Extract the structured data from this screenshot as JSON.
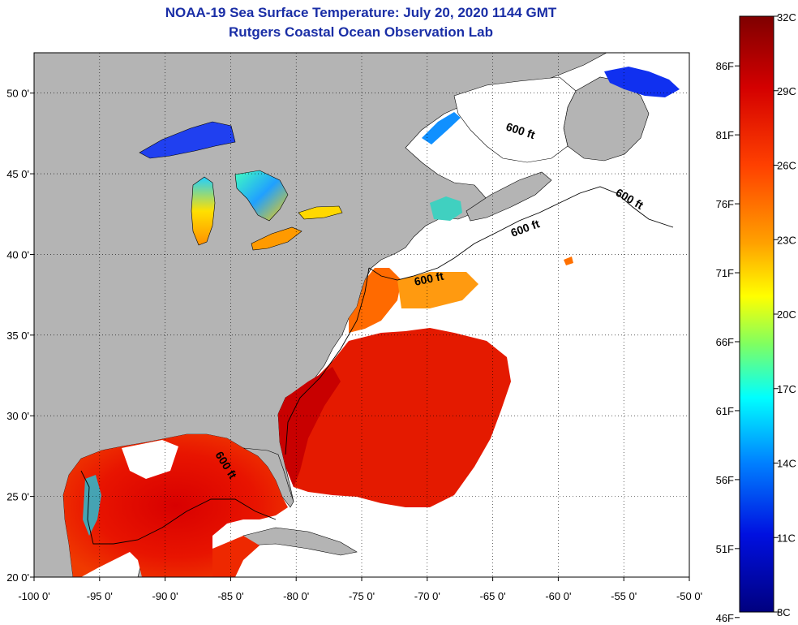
{
  "title": "NOAA-19 Sea Surface Temperature:  July 20, 2020 1144 GMT",
  "subtitle": "Rutgers Coastal Ocean Observation Lab",
  "map": {
    "lon_range": [
      -100,
      -50
    ],
    "lat_range": [
      20,
      52.5
    ],
    "lon_ticks": [
      "-100 0'",
      "-95 0'",
      "-90 0'",
      "-85 0'",
      "-80 0'",
      "-75 0'",
      "-70 0'",
      "-65 0'",
      "-60 0'",
      "-55 0'",
      "-50 0'"
    ],
    "lat_ticks": [
      "50 0'",
      "45 0'",
      "40 0'",
      "35 0'",
      "30 0'",
      "25 0'",
      "20 0'"
    ],
    "lon_values": [
      -100,
      -95,
      -90,
      -85,
      -80,
      -75,
      -70,
      -65,
      -60,
      -55,
      -50
    ],
    "lat_values": [
      50,
      45,
      40,
      35,
      30,
      25,
      20
    ],
    "grid": true,
    "contour_labels": [
      "600 ft",
      "600 ft",
      "600 ft",
      "600 ft",
      "600 ft"
    ],
    "land_color": "#b4b4b4",
    "nodata_color": "#ffffff"
  },
  "colorbar": {
    "celsius": [
      "32C",
      "29C",
      "26C",
      "23C",
      "20C",
      "17C",
      "14C",
      "11C",
      "8C"
    ],
    "fahrenheit": [
      "86F",
      "81F",
      "76F",
      "71F",
      "66F",
      "61F",
      "56F",
      "51F",
      "46F"
    ],
    "c_values": [
      32,
      29,
      26,
      23,
      20,
      17,
      14,
      11,
      8
    ],
    "f_values": [
      86,
      81,
      76,
      71,
      66,
      61,
      56,
      51,
      46
    ],
    "range_c": [
      8,
      32
    ]
  }
}
